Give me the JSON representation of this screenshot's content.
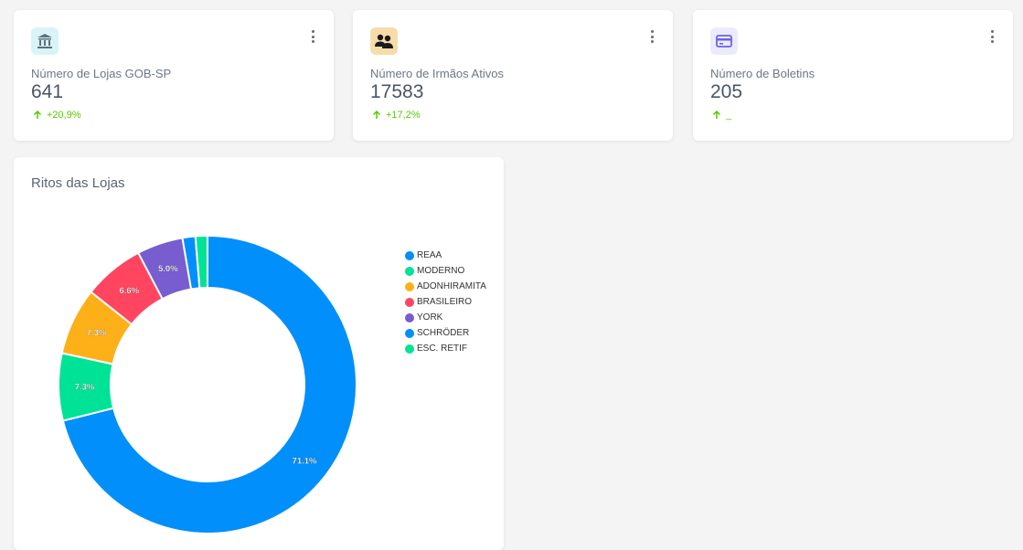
{
  "stats": [
    {
      "label": "Número de Lojas GOB-SP",
      "value": "641",
      "change": "+20,9%",
      "icon": "bank-icon",
      "icon_bg": "#d9f4f7",
      "icon_color": "#5f6f7b"
    },
    {
      "label": "Número de Irmãos Ativos",
      "value": "17583",
      "change": "+17,2%",
      "icon": "users-icon",
      "icon_bg": "#f7dcaa",
      "icon_color": "#1a1a1a"
    },
    {
      "label": "Número de Boletins",
      "value": "205",
      "change": "_",
      "icon": "card-icon",
      "icon_bg": "#ecebfd",
      "icon_color": "#6b62e8"
    }
  ],
  "colors": {
    "change_up": "#56ca00"
  },
  "chart": {
    "title": "Ritos das Lojas",
    "chart_data": {
      "type": "pie",
      "donut": true,
      "legend_position": "right",
      "series": [
        {
          "name": "REAA",
          "value": 71.1,
          "label": "71.1%",
          "color": "#008ffb"
        },
        {
          "name": "MODERNO",
          "value": 7.3,
          "label": "7.3%",
          "color": "#00e396"
        },
        {
          "name": "ADONHIRAMITA",
          "value": 7.3,
          "label": "7.3%",
          "color": "#feb019"
        },
        {
          "name": "BRASILEIRO",
          "value": 6.6,
          "label": "6.6%",
          "color": "#ff4560"
        },
        {
          "name": "YORK",
          "value": 5.0,
          "label": "5.0%",
          "color": "#775dd0"
        },
        {
          "name": "SCHRÖDER",
          "value": 1.4,
          "label": "",
          "color": "#008ffb"
        },
        {
          "name": "ESC. RETIF",
          "value": 1.3,
          "label": "",
          "color": "#00e396"
        }
      ]
    }
  }
}
